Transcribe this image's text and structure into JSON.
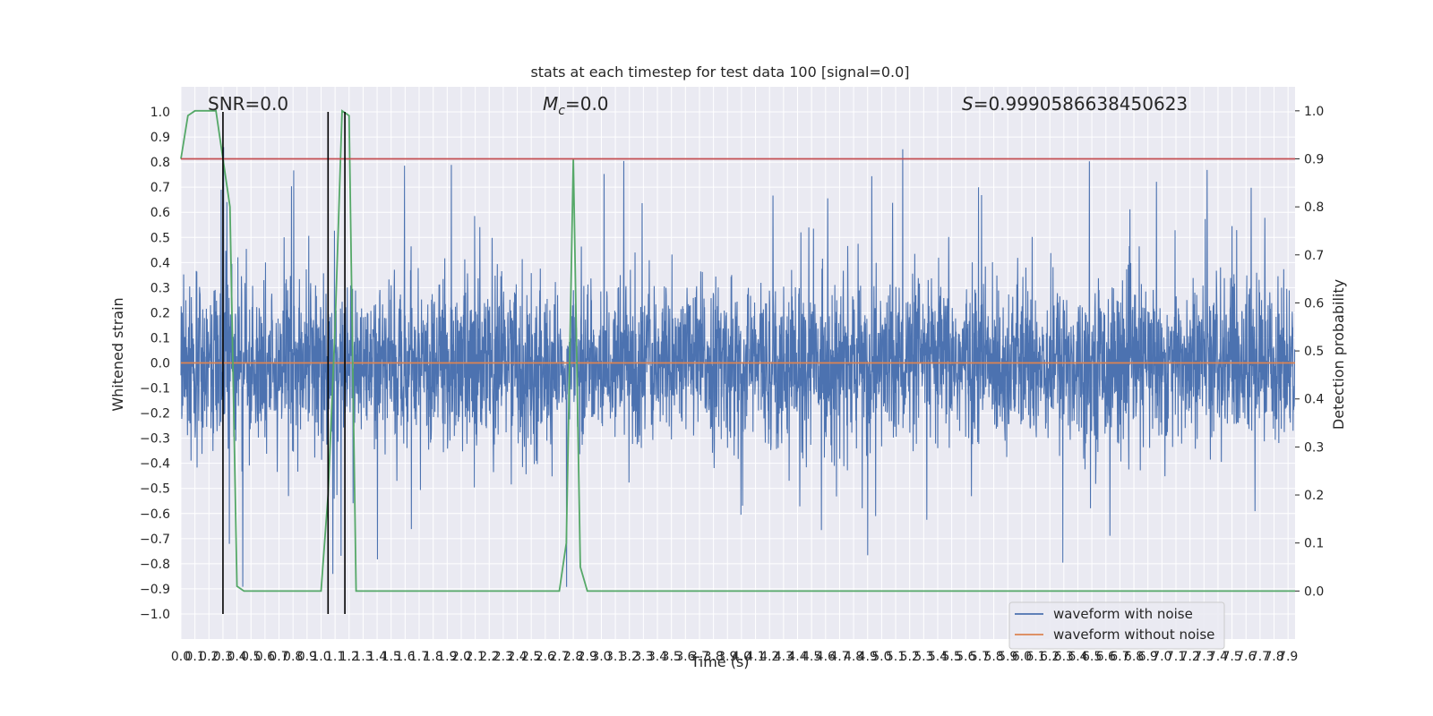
{
  "chart_data": {
    "type": "line",
    "title": "stats at each timestep for test data 100 [signal=0.0]",
    "xlabel": "Time (s)",
    "ylabel": "Whitened strain",
    "ylabel_right": "Detection probability",
    "xlim": [
      0.0,
      7.95
    ],
    "ylim": [
      -1.1,
      1.1
    ],
    "ylim_right": [
      -0.1,
      1.05
    ],
    "x_ticks": [
      0.0,
      0.1,
      0.2,
      0.3,
      0.4,
      0.5,
      0.6,
      0.7,
      0.8,
      0.9,
      1.0,
      1.1,
      1.2,
      1.3,
      1.4,
      1.5,
      1.6,
      1.7,
      1.8,
      1.9,
      2.0,
      2.1,
      2.2,
      2.3,
      2.4,
      2.5,
      2.6,
      2.7,
      2.8,
      2.9,
      3.0,
      3.1,
      3.2,
      3.3,
      3.4,
      3.5,
      3.6,
      3.7,
      3.8,
      3.9,
      4.0,
      4.1,
      4.2,
      4.3,
      4.4,
      4.5,
      4.6,
      4.7,
      4.8,
      4.9,
      5.0,
      5.1,
      5.2,
      5.3,
      5.4,
      5.5,
      5.6,
      5.7,
      5.8,
      5.9,
      6.0,
      6.1,
      6.2,
      6.3,
      6.4,
      6.5,
      6.6,
      6.7,
      6.8,
      6.9,
      7.0,
      7.1,
      7.2,
      7.3,
      7.4,
      7.5,
      7.6,
      7.7,
      7.8,
      7.9
    ],
    "y_ticks_left": [
      -1.0,
      -0.9,
      -0.8,
      -0.7,
      -0.6,
      -0.5,
      -0.4,
      -0.3,
      -0.2,
      -0.1,
      0.0,
      0.1,
      0.2,
      0.3,
      0.4,
      0.5,
      0.6,
      0.7,
      0.8,
      0.9,
      1.0
    ],
    "y_ticks_right": [
      0.0,
      0.1,
      0.2,
      0.3,
      0.4,
      0.5,
      0.6,
      0.7,
      0.8,
      0.9,
      1.0
    ],
    "grid": true,
    "annotations": {
      "snr": "SNR=0.0",
      "mc_symbol": "M",
      "mc_sub": "c",
      "mc_value": "=0.0",
      "s_symbol": "S",
      "s_value": "=0.9990586638450623"
    },
    "legend": {
      "placement": "lower-right",
      "entries": [
        {
          "label": "waveform with noise",
          "color": "#4c72b0"
        },
        {
          "label": "waveform without noise",
          "color": "#dd8452"
        }
      ]
    },
    "series": [
      {
        "name": "waveform with noise",
        "axis": "left",
        "color": "#4c72b0",
        "sample_rate": 512,
        "envelope_max": 0.45,
        "envelope_min": -0.45,
        "peak_max": 0.9,
        "peak_min": -1.0
      },
      {
        "name": "waveform without noise",
        "axis": "left",
        "color": "#dd8452",
        "x": [
          0.0,
          7.95
        ],
        "y": [
          0.0,
          0.0
        ]
      },
      {
        "name": "detection probability",
        "axis": "right",
        "color": "#55a868",
        "x": [
          0.0,
          0.05,
          0.1,
          0.15,
          0.2,
          0.25,
          0.3,
          0.35,
          0.4,
          0.45,
          0.5,
          0.55,
          1.0,
          1.05,
          1.1,
          1.15,
          1.2,
          1.25,
          1.3,
          2.7,
          2.75,
          2.8,
          2.85,
          2.9,
          7.95
        ],
        "y": [
          0.9,
          0.99,
          1.0,
          1.0,
          1.0,
          1.0,
          0.9,
          0.8,
          0.01,
          0.0,
          0.0,
          0.0,
          0.0,
          0.2,
          0.55,
          1.0,
          0.99,
          0.0,
          0.0,
          0.0,
          0.1,
          0.9,
          0.05,
          0.0,
          0.0
        ]
      },
      {
        "name": "threshold",
        "axis": "right",
        "color": "#c44e52",
        "x": [
          0.0,
          7.95
        ],
        "y": [
          0.9,
          0.9
        ]
      }
    ],
    "vertical_markers": [
      {
        "x": 0.3,
        "y_range": [
          -1.0,
          1.0
        ],
        "color": "#000000"
      },
      {
        "x": 1.05,
        "y_range": [
          -1.0,
          1.0
        ],
        "color": "#000000"
      },
      {
        "x": 1.17,
        "y_range": [
          -1.0,
          1.0
        ],
        "color": "#000000"
      }
    ]
  }
}
